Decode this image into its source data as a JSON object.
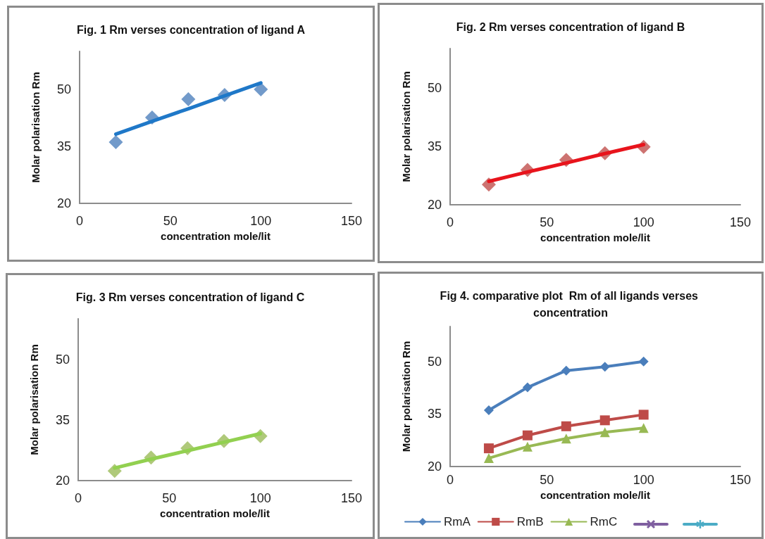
{
  "chart_data": [
    {
      "type": "scatter",
      "title": "Fig. 1 Rm verses concentration of ligand A",
      "xlabel": "concentration mole/lit",
      "ylabel": "Molar polarisation Rm",
      "x": [
        20,
        40,
        60,
        80,
        100
      ],
      "xlim": [
        0,
        150
      ],
      "xticks": [
        0,
        50,
        100,
        150
      ],
      "ylim": [
        20,
        60
      ],
      "yticks": [
        20,
        35,
        50
      ],
      "grid": false,
      "marker": "diamond",
      "series": [
        {
          "color": "#4f81bd",
          "values": [
            36.1,
            42.6,
            47.4,
            48.5,
            50.0
          ]
        },
        {
          "type": "line",
          "marker": "none",
          "color": "#1f78c8",
          "x": [
            20,
            40,
            60,
            80,
            100
          ],
          "values": [
            38.2,
            41.6,
            44.9,
            48.3,
            51.7
          ]
        }
      ]
    },
    {
      "type": "scatter",
      "title": "Fig. 2 Rm verses concentration of ligand B",
      "xlabel": "concentration mole/lit",
      "ylabel": "Molar polarisation Rm",
      "x": [
        20,
        40,
        60,
        80,
        100
      ],
      "xlim": [
        0,
        150
      ],
      "xticks": [
        0,
        50,
        100,
        150
      ],
      "ylim": [
        20,
        60
      ],
      "yticks": [
        20,
        35,
        50
      ],
      "grid": false,
      "marker": "diamond",
      "series": [
        {
          "color": "#c0504d",
          "values": [
            25.2,
            28.9,
            31.5,
            33.2,
            34.8
          ]
        },
        {
          "type": "line",
          "marker": "none",
          "color": "#e8141c",
          "x": [
            20,
            40,
            60,
            80,
            100
          ],
          "values": [
            26.0,
            28.4,
            30.7,
            33.1,
            35.4
          ]
        }
      ]
    },
    {
      "type": "scatter",
      "title": "Fig. 3 Rm verses concentration of ligand C",
      "xlabel": "concentration mole/lit",
      "ylabel": "Molar polarisation Rm",
      "x": [
        20,
        40,
        60,
        80,
        100
      ],
      "xlim": [
        0,
        150
      ],
      "xticks": [
        0,
        50,
        100,
        150
      ],
      "ylim": [
        20,
        60
      ],
      "yticks": [
        20,
        35,
        50
      ],
      "grid": false,
      "marker": "diamond",
      "series": [
        {
          "color": "#9bbb59",
          "values": [
            22.4,
            25.7,
            28.0,
            29.8,
            31.0
          ]
        },
        {
          "type": "line",
          "marker": "none",
          "color": "#92d050",
          "x": [
            20,
            40,
            60,
            80,
            100
          ],
          "values": [
            23.1,
            25.3,
            27.4,
            29.5,
            31.6
          ]
        }
      ]
    },
    {
      "type": "line",
      "title": "Fig 4. comparative plot  Rm of all ligands verses concentration",
      "xlabel": "concentration mole/lit",
      "ylabel": "Molar polarisation Rm",
      "x": [
        20,
        40,
        60,
        80,
        100
      ],
      "xlim": [
        0,
        150
      ],
      "xticks": [
        0,
        50,
        100,
        150
      ],
      "ylim": [
        20,
        60
      ],
      "yticks": [
        20,
        35,
        50
      ],
      "grid": false,
      "legend": "bottom",
      "series": [
        {
          "name": "RmA",
          "marker": "diamond",
          "color": "#4a7ebb",
          "values": [
            36.1,
            42.6,
            47.4,
            48.5,
            50.0
          ]
        },
        {
          "name": "RmB",
          "marker": "square",
          "color": "#be4b48",
          "values": [
            25.2,
            28.9,
            31.5,
            33.2,
            34.8
          ]
        },
        {
          "name": "RmC",
          "marker": "triangle",
          "color": "#98b954",
          "values": [
            22.4,
            25.7,
            28.0,
            29.8,
            31.0
          ]
        },
        {
          "marker": "cross",
          "color": "#7f5fa0",
          "values": [
            null,
            null,
            null,
            null,
            null
          ]
        },
        {
          "marker": "star",
          "color": "#4bacc6",
          "values": [
            null,
            null,
            null,
            null,
            null
          ]
        }
      ]
    }
  ]
}
